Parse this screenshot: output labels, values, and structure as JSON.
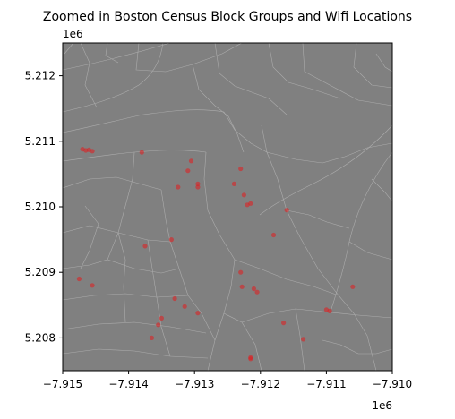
{
  "chart_data": {
    "type": "scatter",
    "title": "Zoomed in Boston Census Block Groups and Wifi Locations",
    "xlabel": "",
    "ylabel": "",
    "x_offset_label": "1e6",
    "y_offset_label": "1e6",
    "xlim": [
      -7.915,
      -7.91
    ],
    "ylim": [
      5.2075,
      5.2125
    ],
    "x_ticks": [
      -7.915,
      -7.914,
      -7.913,
      -7.912,
      -7.911,
      -7.91
    ],
    "x_tick_labels": [
      "−7.915",
      "−7.914",
      "−7.913",
      "−7.912",
      "−7.911",
      "−7.910"
    ],
    "y_ticks": [
      5.208,
      5.209,
      5.21,
      5.211,
      5.212
    ],
    "y_tick_labels": [
      "5.208",
      "5.209",
      "5.210",
      "5.211",
      "5.212"
    ],
    "grid": false,
    "legend": "none",
    "background_color": "#808080",
    "boundary_color": "#b4b4b4",
    "point_color": "#e41a1c",
    "series": [
      {
        "name": "",
        "points": [
          [
            -7.9147,
            5.21088
          ],
          [
            -7.91465,
            5.21086
          ],
          [
            -7.9146,
            5.21087
          ],
          [
            -7.91455,
            5.21085
          ],
          [
            -7.9138,
            5.21083
          ],
          [
            -7.91305,
            5.2107
          ],
          [
            -7.9131,
            5.21055
          ],
          [
            -7.91325,
            5.2103
          ],
          [
            -7.91295,
            5.21035
          ],
          [
            -7.91295,
            5.2103
          ],
          [
            -7.9123,
            5.21058
          ],
          [
            -7.9124,
            5.21035
          ],
          [
            -7.91225,
            5.21018
          ],
          [
            -7.9122,
            5.21003
          ],
          [
            -7.91215,
            5.21005
          ],
          [
            -7.9116,
            5.20995
          ],
          [
            -7.9118,
            5.20957
          ],
          [
            -7.91375,
            5.2094
          ],
          [
            -7.91335,
            5.2095
          ],
          [
            -7.91475,
            5.2089
          ],
          [
            -7.91455,
            5.2088
          ],
          [
            -7.9123,
            5.209
          ],
          [
            -7.91228,
            5.20878
          ],
          [
            -7.9121,
            5.20875
          ],
          [
            -7.91205,
            5.2087
          ],
          [
            -7.9133,
            5.2086
          ],
          [
            -7.91315,
            5.20848
          ],
          [
            -7.91295,
            5.20838
          ],
          [
            -7.9135,
            5.2083
          ],
          [
            -7.91355,
            5.2082
          ],
          [
            -7.91365,
            5.208
          ],
          [
            -7.91165,
            5.20823
          ],
          [
            -7.911,
            5.20843
          ],
          [
            -7.91095,
            5.20841
          ],
          [
            -7.9106,
            5.20878
          ],
          [
            -7.91135,
            5.20798
          ],
          [
            -7.91215,
            5.2077
          ],
          [
            -7.91215,
            5.20768
          ]
        ]
      }
    ]
  }
}
